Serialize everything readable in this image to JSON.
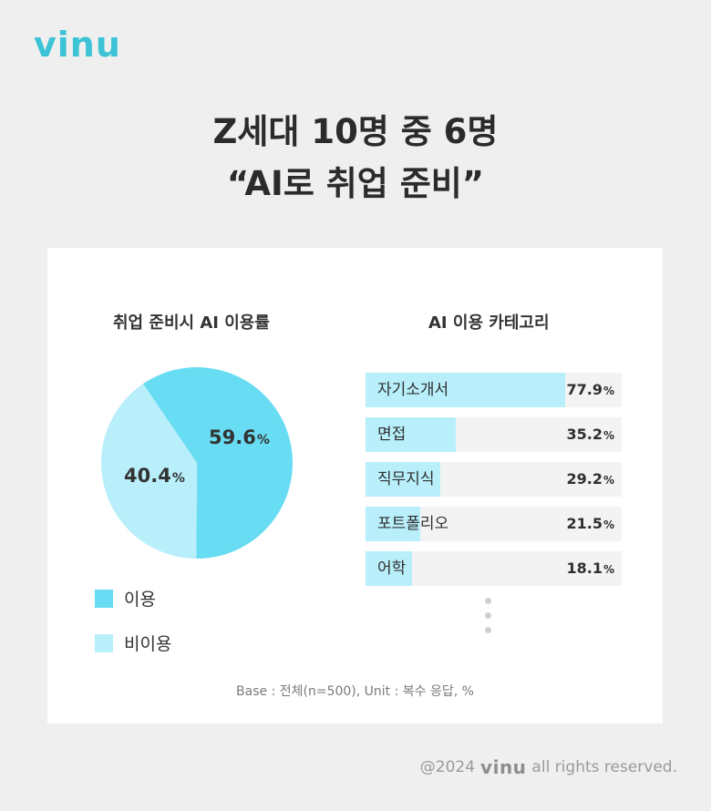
{
  "brand": {
    "logo_text": "vinu"
  },
  "headline": {
    "line1": "Z세대 10명 중 6명",
    "line2": "“AI로 취업 준비”"
  },
  "chart_data": [
    {
      "type": "pie",
      "title": "취업 준비시 AI 이용률",
      "slices": [
        {
          "label": "이용",
          "value": 59.6,
          "color": "#67dcf3"
        },
        {
          "label": "비이용",
          "value": 40.4,
          "color": "#b8effa"
        }
      ],
      "unit": "%",
      "legend_placement": "bottom-left"
    },
    {
      "type": "bar",
      "orientation": "horizontal",
      "title": "AI 이용 카테고리",
      "categories": [
        "자기소개서",
        "면접",
        "직무지식",
        "포트폴리오",
        "어학"
      ],
      "values": [
        77.9,
        35.2,
        29.2,
        21.5,
        18.1
      ],
      "unit": "%",
      "xlim": [
        0,
        100
      ],
      "bar_color": "#b8effa",
      "track_color": "#f3f3f3",
      "truncated_indicator": "⋮"
    }
  ],
  "footnote": "Base : 전체(n=500), Unit : 복수 응답, %",
  "copyright": {
    "prefix": "@2024",
    "brand": "vinu",
    "suffix": "all rights reserved."
  }
}
